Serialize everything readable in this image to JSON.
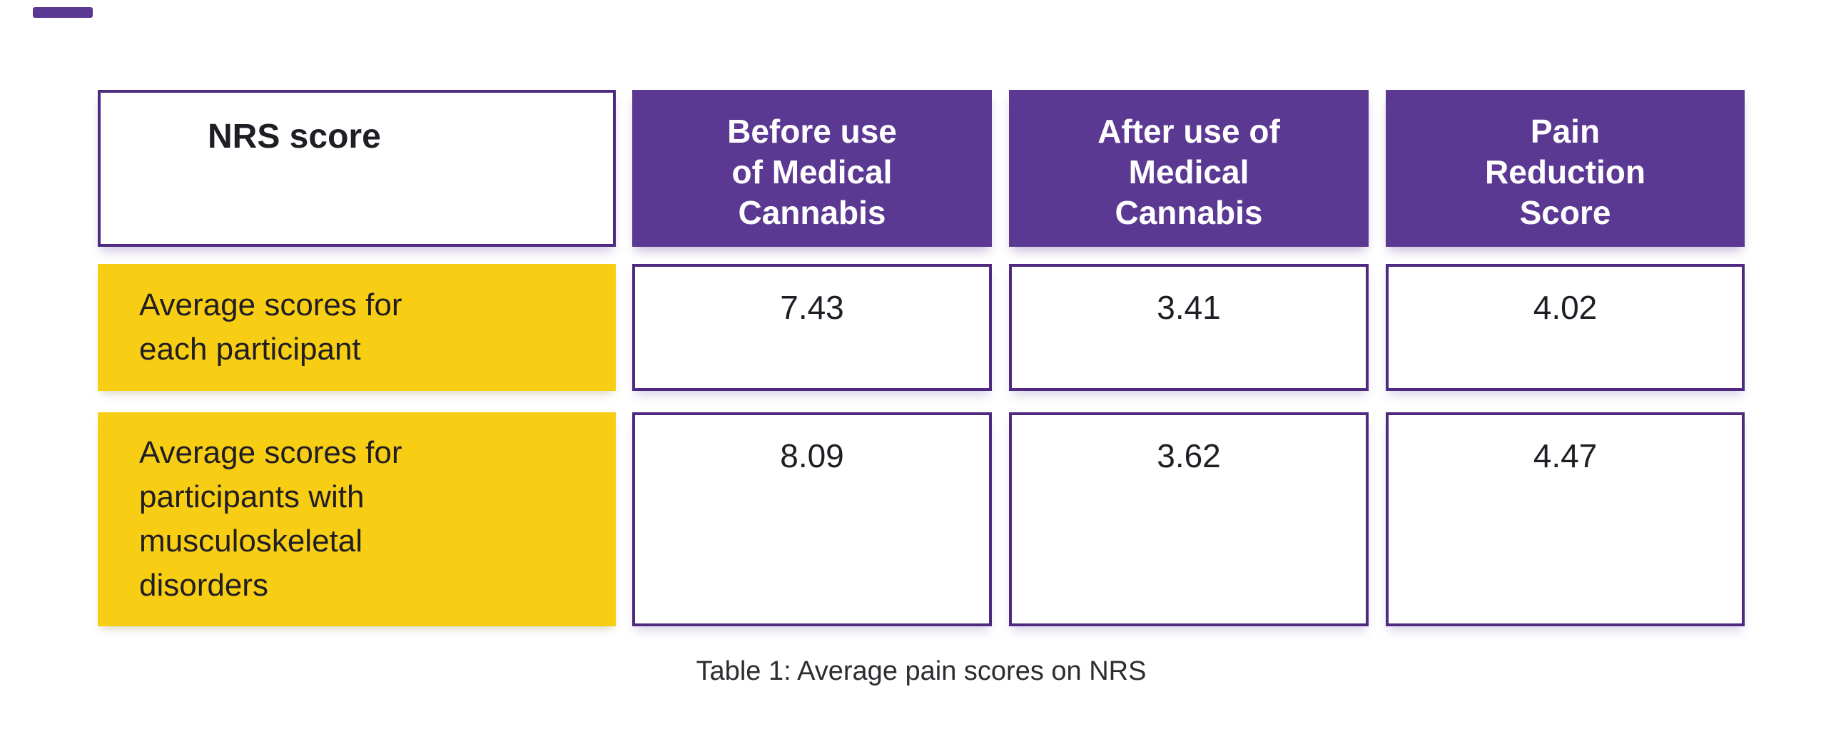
{
  "page": {
    "background": "#ffffff",
    "colors": {
      "purple_fill": "#5B3992",
      "purple_border": "#4E2B80",
      "yellow_fill": "#F7CE13",
      "text": "#211d24"
    },
    "decoration": {
      "corner_dash": true
    }
  },
  "table": {
    "header": {
      "col1": "NRS score",
      "col2_lines": [
        "Before use",
        "of Medical",
        "Cannabis"
      ],
      "col3_lines": [
        "After use of",
        "Medical",
        "Cannabis"
      ],
      "col4_lines": [
        "Pain",
        "Reduction",
        "Score"
      ]
    },
    "rows": [
      {
        "label": "Average scores for each participant",
        "before": "7.43",
        "after": "3.41",
        "reduction": "4.02"
      },
      {
        "label": "Average scores for participants with musculoskeletal disorders",
        "before": "8.09",
        "after": "3.62",
        "reduction": "4.47"
      }
    ],
    "caption": "Table 1: Average pain scores on NRS"
  },
  "chart_data": {
    "type": "table",
    "title": "Table 1: Average pain scores on NRS",
    "columns": [
      "NRS score",
      "Before use of Medical Cannabis",
      "After use of Medical Cannabis",
      "Pain Reduction Score"
    ],
    "row_labels": [
      "Average scores for each participant",
      "Average scores for participants with musculoskeletal disorders"
    ],
    "series": [
      {
        "name": "Before use of Medical Cannabis",
        "values": [
          7.43,
          8.09
        ]
      },
      {
        "name": "After use of Medical Cannabis",
        "values": [
          3.41,
          3.62
        ]
      },
      {
        "name": "Pain Reduction Score",
        "values": [
          4.02,
          4.47
        ]
      }
    ],
    "layout": {
      "grid": "separated cells with gaps",
      "header_fill": "#5B3992",
      "row_label_fill": "#F7CE13"
    }
  }
}
